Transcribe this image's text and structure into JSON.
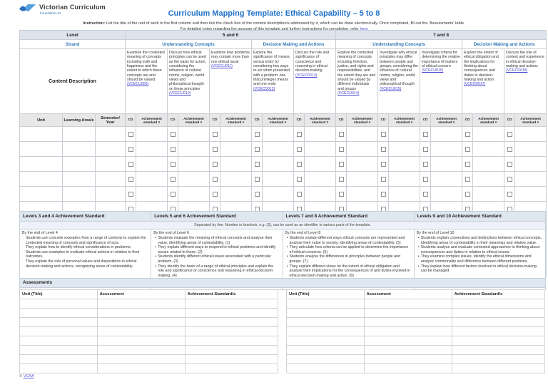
{
  "logo": {
    "name": "Victorian Curriculum",
    "subtitle": "Foundation-10"
  },
  "title": "Curriculum Mapping Template: Ethical Capability – 5 to 8",
  "instruction": {
    "label": "Instruction:",
    "text1": "List the title of the unit of work in the first column and then tick the check box of the content description/s addressed by it, which can be done electronically. Once completed, fill out the 'Assessments' table.",
    "text2": "For detailed notes regarding the purpose of this template and further instructions for completion, refer",
    "link_text": "here"
  },
  "mapping_table": {
    "level_label": "Level",
    "level_groups": [
      "5 and 6",
      "7 and 8"
    ],
    "strand_label": "Strand",
    "strands": [
      {
        "label": "Understanding Concepts",
        "pair_span": 3
      },
      {
        "label": "Decision Making and Actions",
        "pair_span": 2
      },
      {
        "label": "Understanding Concepts",
        "pair_span": 3
      },
      {
        "label": "Decision Making and Actions",
        "pair_span": 2
      }
    ],
    "content_description_label": "Content Description",
    "columns_header": {
      "unit": "Unit",
      "learning_areas": "Learning Area/s",
      "semester_year": "Semester/ Year",
      "cd": "CD",
      "achievement": "Achievement standard #"
    },
    "content_descriptions": [
      {
        "text": "Examine the contested meaning of concepts including truth and happiness and the extent to which these concepts are and should be valued",
        "code": "VCECU009"
      },
      {
        "text": "Discuss how ethical principles can be used as the basis for action, considering the influence of cultural norms, religion, world views and philosophical thought on these principles",
        "code": "VCECU010"
      },
      {
        "text": "Examine how problems may contain more than one ethical issue",
        "code": "VCECU011"
      },
      {
        "text": "Explore the significance of 'means versus ends' by considering two ways to act when presented with a problem: one that privileges means and one ends",
        "code": "VCECD012"
      },
      {
        "text": "Discuss the role and significance of conscience and reasoning in ethical decision-making",
        "code": "VCECD013"
      },
      {
        "text": "Explore the contested meaning of concepts including freedom, justice, and rights and responsibilities, and the extent they are and should be valued by different individuals and groups",
        "code": "VCECU014"
      },
      {
        "text": "Investigate why ethical principles may differ between people and groups, considering the influence of cultural norms, religion, world views and philosophical thought",
        "code": "VCECU015"
      },
      {
        "text": "Investigate criteria for determining the relative importance of matters of ethical concern",
        "code": "VCECU016"
      },
      {
        "text": "Explore the extent of ethical obligation and the implications for thinking about consequences and duties in decision-making and action",
        "code": "VCECD017"
      },
      {
        "text": "Discuss the role of context and experience in ethical decision-making and actions",
        "code": "VCECD018"
      }
    ],
    "empty_row_count": 10
  },
  "achievement_standards": {
    "headers": [
      "Levels 3 and 4 Achievement Standard",
      "Levels 5 and 6 Achievement Standard",
      "Levels 7 and 8 Achievement Standard",
      "Levels 9 and 10 Achievement Standard"
    ],
    "note": "Separated by line. Number in brackets, e.g. (3), can be used as an identifier in various parts of the template.",
    "columns": [
      {
        "intro": "By the end of Level 4",
        "bulleted": false,
        "bullets": [
          "Students use concrete examples from a range of contexts to explain the contested meaning of concepts and significance of acts.",
          "They explain how to identify ethical considerations in problems.",
          "Students use examples to evaluate ethical actions in relation to their outcomes.",
          "They explain the role of personal values and dispositions in ethical decision-making and actions, recognising areas of contestability."
        ]
      },
      {
        "intro": "By the end of Level 6",
        "bulleted": true,
        "bullets": [
          "Students evaluate the meaning of ethical concepts and analyse their value, identifying areas of contestability. (1)",
          "They explain different ways to respond to ethical problems and identify issues related to these. (2)",
          "Students identify different ethical issues associated with a particular problem. (3)",
          "They identify the basis of a range of ethical principles and explain the role and significance of conscience and reasoning in ethical decision-making. (4)"
        ]
      },
      {
        "intro": "By the end of Level 8",
        "bulleted": true,
        "bullets": [
          "Students explain different ways ethical concepts are represented and analyse their value to society, identifying areas of contestability. (5)",
          "They articulate how criteria can be applied to determine the importance of ethical concerns. (6)",
          "Students analyse the differences in principles between people and groups. (7)",
          "They explain different views on the extent of ethical obligation and analyse their implications for the consequences of and duties involved in ethical decision-making and action. (8)",
          "They analyse the role of context and experience in ethical decision-making and action. (9)"
        ]
      },
      {
        "intro": "By the end of Level 10",
        "bulleted": true,
        "bullets": [
          "Students explain connections and distinctions between ethical concepts, identifying areas of contestability in their meanings and relative value.",
          "Students analyse and evaluate contested approaches to thinking about consequences and duties in relation to ethical issues.",
          "They examine complex issues, identify the ethical dimensions and analyse commonality and difference between different positions.",
          "They explain how different factors involved in ethical decision-making can be managed."
        ]
      }
    ]
  },
  "assessments": {
    "title": "Assessments",
    "columns": [
      "Unit (Title)",
      "Assessment",
      "Achievement Standard/s"
    ],
    "empty_row_count": 8,
    "table_count": 2
  },
  "footer": {
    "copyright": "©",
    "link_text": "VCAA"
  },
  "colors": {
    "title_blue": "#2173c8",
    "strand_blue": "#2e75b6",
    "link_blue": "#4646d2",
    "header_band_bg": "#dde4ee",
    "section_header_bg": "#dfe7f0",
    "column_header_grey": "#e7e7e7"
  }
}
